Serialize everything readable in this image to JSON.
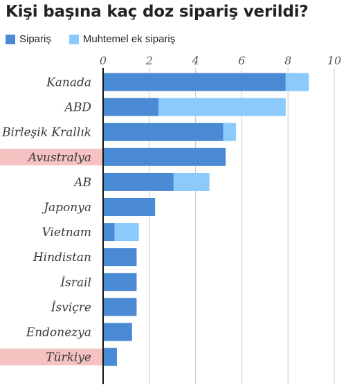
{
  "chart_data": {
    "type": "bar",
    "title": "Kişi başına kaç doz sipariş verildi?",
    "series": [
      {
        "name": "Sipariş",
        "color": "#4a8ad4",
        "values": [
          7.9,
          2.4,
          5.2,
          5.3,
          3.05,
          2.25,
          0.5,
          1.45,
          1.45,
          1.45,
          1.25,
          0.6
        ]
      },
      {
        "name": "Muhtemel ek sipariş",
        "color": "#8ccafb",
        "values": [
          1.0,
          5.5,
          0.55,
          0,
          1.55,
          0,
          1.05,
          0,
          0,
          0,
          0,
          0
        ]
      }
    ],
    "categories": [
      "Kanada",
      "ABD",
      "Birleşik Krallık",
      "Avustralya",
      "AB",
      "Japonya",
      "Vietnam",
      "Hindistan",
      "İsrail",
      "İsviçre",
      "Endonezya",
      "Türkiye"
    ],
    "highlighted": [
      "Avustralya",
      "Türkiye"
    ],
    "highlight_color": "#f6c1c1",
    "xticks": [
      0,
      2,
      4,
      6,
      8,
      10
    ],
    "xlim": [
      0,
      10
    ],
    "grid": true,
    "legend_position": "top-left"
  }
}
